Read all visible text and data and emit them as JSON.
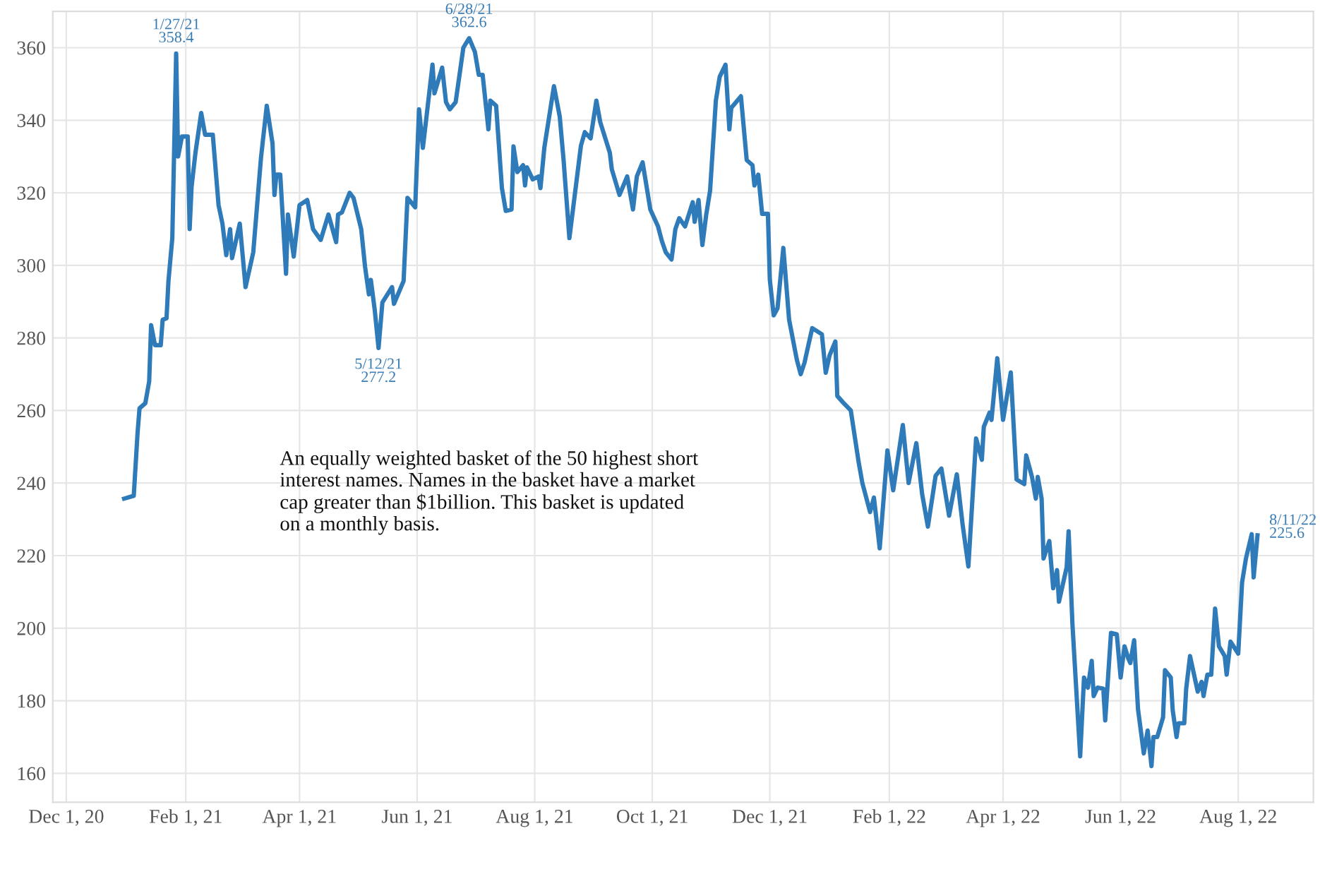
{
  "chart_data": {
    "type": "line",
    "x": [
      "2020-12-31",
      "2021-01-05",
      "2021-01-07",
      "2021-01-08",
      "2021-01-11",
      "2021-01-13",
      "2021-01-14",
      "2021-01-16",
      "2021-01-19",
      "2021-01-20",
      "2021-01-22",
      "2021-01-23",
      "2021-01-25",
      "2021-01-27",
      "2021-01-28",
      "2021-01-30",
      "2021-02-02",
      "2021-02-03",
      "2021-02-04",
      "2021-02-06",
      "2021-02-09",
      "2021-02-11",
      "2021-02-15",
      "2021-02-18",
      "2021-02-20",
      "2021-02-22",
      "2021-02-24",
      "2021-02-25",
      "2021-03-01",
      "2021-03-04",
      "2021-03-08",
      "2021-03-12",
      "2021-03-15",
      "2021-03-18",
      "2021-03-19",
      "2021-03-20",
      "2021-03-22",
      "2021-03-25",
      "2021-03-26",
      "2021-03-29",
      "2021-04-01",
      "2021-04-05",
      "2021-04-08",
      "2021-04-12",
      "2021-04-16",
      "2021-04-20",
      "2021-04-21",
      "2021-04-23",
      "2021-04-27",
      "2021-04-29",
      "2021-05-03",
      "2021-05-05",
      "2021-05-07",
      "2021-05-08",
      "2021-05-10",
      "2021-05-12",
      "2021-05-14",
      "2021-05-19",
      "2021-05-20",
      "2021-05-25",
      "2021-05-27",
      "2021-05-31",
      "2021-06-02",
      "2021-06-04",
      "2021-06-09",
      "2021-06-10",
      "2021-06-14",
      "2021-06-16",
      "2021-06-18",
      "2021-06-21",
      "2021-06-25",
      "2021-06-28",
      "2021-07-01",
      "2021-07-03",
      "2021-07-05",
      "2021-07-08",
      "2021-07-09",
      "2021-07-12",
      "2021-07-15",
      "2021-07-17",
      "2021-07-20",
      "2021-07-21",
      "2021-07-23",
      "2021-07-26",
      "2021-07-27",
      "2021-07-28",
      "2021-07-31",
      "2021-08-03",
      "2021-08-04",
      "2021-08-06",
      "2021-08-11",
      "2021-08-14",
      "2021-08-16",
      "2021-08-19",
      "2021-08-25",
      "2021-08-27",
      "2021-08-30",
      "2021-09-02",
      "2021-09-04",
      "2021-09-09",
      "2021-09-10",
      "2021-09-14",
      "2021-09-18",
      "2021-09-21",
      "2021-09-23",
      "2021-09-26",
      "2021-09-30",
      "2021-10-04",
      "2021-10-06",
      "2021-10-08",
      "2021-10-11",
      "2021-10-13",
      "2021-10-15",
      "2021-10-18",
      "2021-10-22",
      "2021-10-23",
      "2021-10-25",
      "2021-10-27",
      "2021-10-29",
      "2021-10-31",
      "2021-11-03",
      "2021-11-05",
      "2021-11-08",
      "2021-11-10",
      "2021-11-11",
      "2021-11-16",
      "2021-11-19",
      "2021-11-22",
      "2021-11-23",
      "2021-11-25",
      "2021-11-27",
      "2021-11-30",
      "2021-12-01",
      "2021-12-03",
      "2021-12-05",
      "2021-12-08",
      "2021-12-11",
      "2021-12-15",
      "2021-12-17",
      "2021-12-19",
      "2021-12-21",
      "2021-12-23",
      "2021-12-28",
      "2021-12-30",
      "2022-01-01",
      "2022-01-04",
      "2022-01-05",
      "2022-01-08",
      "2022-01-12",
      "2022-01-16",
      "2022-01-18",
      "2022-01-22",
      "2022-01-24",
      "2022-01-27",
      "2022-01-31",
      "2022-02-03",
      "2022-02-08",
      "2022-02-11",
      "2022-02-15",
      "2022-02-18",
      "2022-02-21",
      "2022-02-25",
      "2022-02-28",
      "2022-03-04",
      "2022-03-08",
      "2022-03-11",
      "2022-03-14",
      "2022-03-18",
      "2022-03-21",
      "2022-03-22",
      "2022-03-25",
      "2022-03-26",
      "2022-03-29",
      "2022-04-01",
      "2022-04-05",
      "2022-04-08",
      "2022-04-12",
      "2022-04-13",
      "2022-04-16",
      "2022-04-18",
      "2022-04-19",
      "2022-04-21",
      "2022-04-22",
      "2022-04-25",
      "2022-04-27",
      "2022-04-29",
      "2022-04-30",
      "2022-05-04",
      "2022-05-05",
      "2022-05-07",
      "2022-05-11",
      "2022-05-13",
      "2022-05-15",
      "2022-05-17",
      "2022-05-18",
      "2022-05-20",
      "2022-05-23",
      "2022-05-24",
      "2022-05-27",
      "2022-05-30",
      "2022-06-01",
      "2022-06-03",
      "2022-06-05",
      "2022-06-06",
      "2022-06-08",
      "2022-06-10",
      "2022-06-13",
      "2022-06-15",
      "2022-06-17",
      "2022-06-18",
      "2022-06-20",
      "2022-06-23",
      "2022-06-24",
      "2022-06-27",
      "2022-06-28",
      "2022-06-30",
      "2022-07-01",
      "2022-07-04",
      "2022-07-05",
      "2022-07-07",
      "2022-07-11",
      "2022-07-13",
      "2022-07-14",
      "2022-07-16",
      "2022-07-18",
      "2022-07-20",
      "2022-07-22",
      "2022-07-25",
      "2022-07-26",
      "2022-07-28",
      "2022-08-01",
      "2022-08-03",
      "2022-08-05",
      "2022-08-08",
      "2022-08-09",
      "2022-08-11"
    ],
    "series": [
      {
        "color": "#2f7ab8",
        "values": [
          235.7,
          236.5,
          254,
          260.6,
          262,
          268,
          283.5,
          278,
          278,
          285,
          285.4,
          295.7,
          307.5,
          358.4,
          330,
          335.5,
          335.5,
          310,
          321.7,
          331,
          342,
          336,
          336,
          316.6,
          311.5,
          302.8,
          310,
          302,
          311.5,
          294,
          303.6,
          329.6,
          344,
          333.6,
          319.4,
          325,
          325,
          297.7,
          314,
          302.4,
          316.6,
          318,
          310,
          307,
          314,
          306.4,
          314,
          314.6,
          320,
          318.6,
          310,
          299.6,
          292,
          296,
          287.8,
          277.2,
          289.8,
          294,
          289.4,
          295.7,
          318.6,
          316,
          343,
          332.4,
          355.3,
          347.4,
          354.5,
          345,
          343,
          345,
          360,
          362.6,
          358.8,
          352.5,
          352.5,
          337.5,
          345.4,
          344,
          321.3,
          315,
          315.4,
          332.8,
          325.7,
          327.6,
          322,
          327,
          323.7,
          324.5,
          321.3,
          332.4,
          349.4,
          341,
          329,
          307.5,
          333,
          336.7,
          335,
          345.4,
          339.5,
          331,
          326.5,
          319.4,
          324.5,
          315.4,
          324.5,
          328.4,
          315.4,
          310.7,
          306.7,
          303.6,
          301.6,
          310,
          313,
          310.7,
          317.4,
          312,
          318,
          305.6,
          314,
          320.6,
          345.4,
          352,
          355.3,
          337.5,
          343.4,
          346.6,
          329,
          327.6,
          322,
          325,
          314.2,
          314.2,
          296,
          286.2,
          288.2,
          304.8,
          285,
          274,
          270,
          273.2,
          278,
          282.7,
          281,
          270.4,
          275.2,
          279,
          264,
          262.2,
          260,
          246,
          240,
          232,
          236,
          222,
          249,
          238,
          256,
          240,
          251,
          237,
          228,
          242,
          244,
          231,
          242.4,
          228.6,
          217,
          252.3,
          246.4,
          255.5,
          259.4,
          257.4,
          274.4,
          257.4,
          270.5,
          241,
          239.7,
          247.6,
          241.7,
          235.7,
          241.7,
          235.7,
          219.2,
          224,
          211,
          216,
          207.3,
          216.8,
          226.7,
          201,
          164.7,
          186.4,
          183.6,
          191,
          181.3,
          183.6,
          183.3,
          174.6,
          198.7,
          198.3,
          186.4,
          195,
          191.6,
          190.4,
          196.7,
          177.7,
          165.5,
          171.8,
          162,
          170,
          170,
          175.4,
          188.4,
          186.4,
          177.4,
          170,
          173.8,
          173.8,
          183.3,
          192.3,
          182.5,
          185.2,
          181.3,
          187.2,
          187.2,
          205.4,
          195,
          192.3,
          187.2,
          196.3,
          193,
          212.6,
          219.2,
          225.9,
          214,
          225.6
        ]
      }
    ],
    "xlim": [
      "2020-11-24",
      "2022-09-09"
    ],
    "xticks": [
      {
        "value": "2020-12-01",
        "label": "Dec 1, 20"
      },
      {
        "value": "2021-02-01",
        "label": "Feb 1, 21"
      },
      {
        "value": "2021-04-01",
        "label": "Apr 1, 21"
      },
      {
        "value": "2021-06-01",
        "label": "Jun 1, 21"
      },
      {
        "value": "2021-08-01",
        "label": "Aug 1, 21"
      },
      {
        "value": "2021-10-01",
        "label": "Oct 1, 21"
      },
      {
        "value": "2021-12-01",
        "label": "Dec 1, 21"
      },
      {
        "value": "2022-02-01",
        "label": "Feb 1, 22"
      },
      {
        "value": "2022-04-01",
        "label": "Apr 1, 22"
      },
      {
        "value": "2022-06-01",
        "label": "Jun 1, 22"
      },
      {
        "value": "2022-08-01",
        "label": "Aug 1, 22"
      }
    ],
    "ylim": [
      152,
      370
    ],
    "yticks": [
      160,
      180,
      200,
      220,
      240,
      260,
      280,
      300,
      320,
      340,
      360
    ],
    "grid": true,
    "annotations": [
      {
        "text": "1/27/21\n358.4",
        "x": "2021-01-27",
        "y": 358.4
      },
      {
        "text": "6/28/21\n362.6",
        "x": "2021-06-28",
        "y": 362.6
      },
      {
        "text": "5/12/21\n277.2",
        "x": "2021-05-12",
        "y": 277.2
      },
      {
        "text": "8/11/22\n225.6",
        "x": "2022-08-11",
        "y": 225.6
      },
      "An equally weighted basket of the 50 highest short\ninterest names. Names in the basket have a market\ncap greater than $1billion. This basket is updated\non a monthly basis."
    ]
  }
}
